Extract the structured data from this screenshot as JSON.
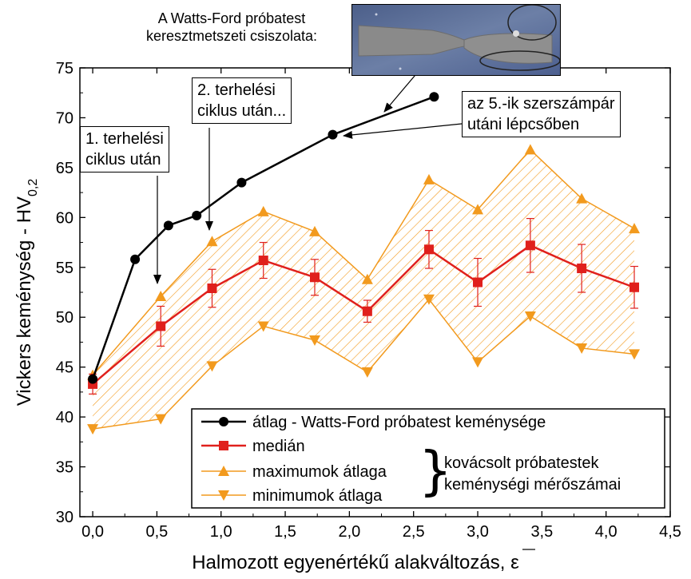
{
  "chart_data": {
    "type": "line",
    "xlabel": "Halmozott egyenértékű alakváltozás, ε",
    "ylabel_main": "Vickers keménység - HV",
    "ylabel_sub": "0,2",
    "xlim": [
      -0.1,
      4.5
    ],
    "ylim": [
      30,
      75
    ],
    "xticks": [
      "0,0",
      "0,5",
      "1,0",
      "1,5",
      "2,0",
      "2,5",
      "3,0",
      "3,5",
      "4,0",
      "4,5"
    ],
    "yticks": [
      "30",
      "35",
      "40",
      "45",
      "50",
      "55",
      "60",
      "65",
      "70",
      "75"
    ],
    "grid": false,
    "legend_position": "bottom-right",
    "series": [
      {
        "name": "átlag - Watts-Ford próbatest keménysége",
        "color": "#000000",
        "marker": "circle",
        "x": [
          0.0,
          0.33,
          0.59,
          0.81,
          1.16,
          1.87,
          2.66
        ],
        "y": [
          43.8,
          55.8,
          59.2,
          60.2,
          63.5,
          68.3,
          72.1
        ]
      },
      {
        "name": "medián",
        "color": "#e0201c",
        "marker": "square",
        "x": [
          0.0,
          0.53,
          0.93,
          1.33,
          1.73,
          2.14,
          2.62,
          3.0,
          3.41,
          3.81,
          4.22
        ],
        "y": [
          43.3,
          49.1,
          52.9,
          55.7,
          54.0,
          50.6,
          56.8,
          53.5,
          57.2,
          54.9,
          53.0
        ],
        "err": [
          1.0,
          2.0,
          1.9,
          1.8,
          1.8,
          1.1,
          1.9,
          2.4,
          2.7,
          2.4,
          2.1
        ]
      },
      {
        "name": "maximumok átlaga",
        "color": "#f29a1e",
        "marker": "triangle-up",
        "x": [
          0.0,
          0.53,
          0.93,
          1.33,
          1.73,
          2.14,
          2.62,
          3.0,
          3.41,
          3.81,
          4.22
        ],
        "y": [
          44.2,
          52.1,
          57.6,
          60.6,
          58.6,
          53.8,
          63.8,
          60.8,
          66.8,
          61.9,
          58.9
        ]
      },
      {
        "name": "minimumok átlaga",
        "color": "#f29a1e",
        "marker": "triangle-down",
        "x": [
          0.0,
          0.53,
          0.93,
          1.33,
          1.73,
          2.14,
          2.62,
          3.0,
          3.41,
          3.81,
          4.22
        ],
        "y": [
          38.8,
          39.8,
          45.1,
          49.1,
          47.7,
          44.5,
          51.8,
          45.5,
          50.1,
          46.9,
          46.3
        ]
      }
    ],
    "legend_brace_label_line1": "kovácsolt próbatestek",
    "legend_brace_label_line2": "keménységi mérőszámai"
  },
  "annotations": {
    "micrograph_caption_line1": "A Watts-Ford próbatest",
    "micrograph_caption_line2": "keresztmetszeti csiszolata:",
    "cycle1_line1": "1. terhelési",
    "cycle1_line2": "ciklus után",
    "cycle2_line1": "2. terhelési",
    "cycle2_line2": "ciklus után...",
    "tool5_line1": "az 5.-ik szerszámpár",
    "tool5_line2": "utáni lépcsőben"
  },
  "colors": {
    "hatch": "#f29a1e",
    "median": "#e0201c",
    "mean": "#000000",
    "micrograph_bg": "#5a6e96",
    "specimen": "#8c8c8c"
  }
}
